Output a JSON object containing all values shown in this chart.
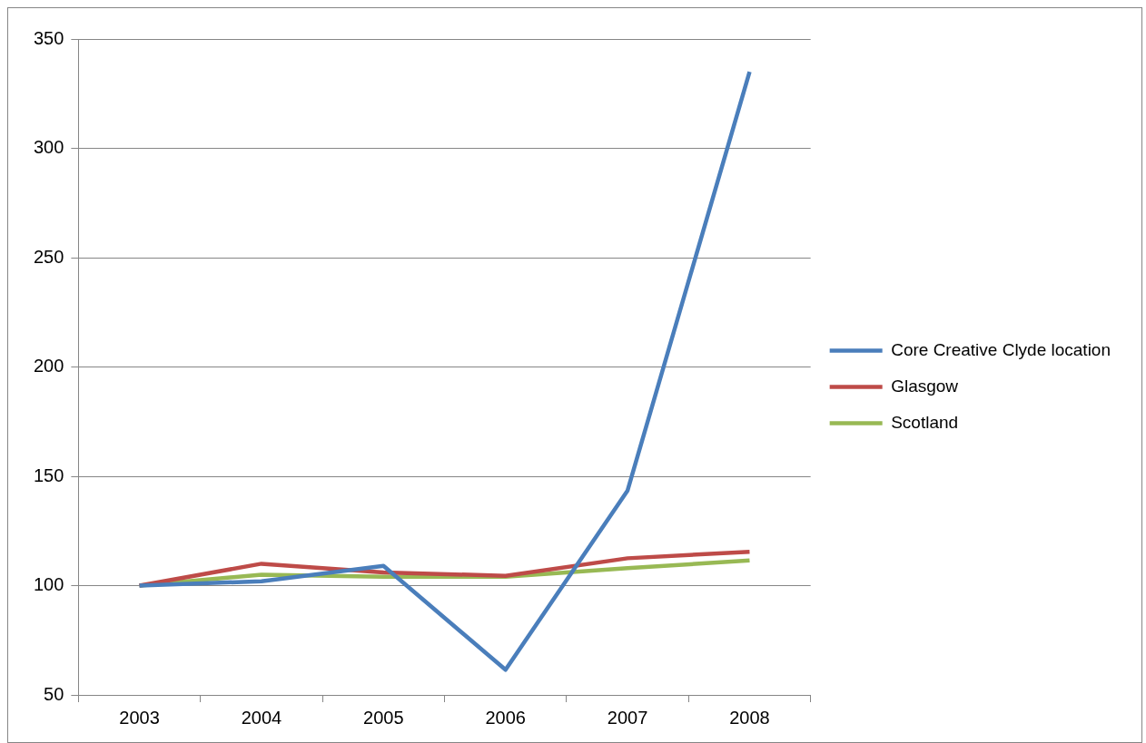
{
  "chart_data": {
    "type": "line",
    "categories": [
      "2003",
      "2004",
      "2005",
      "2006",
      "2007",
      "2008"
    ],
    "series": [
      {
        "name": "Core Creative Clyde location",
        "color": "#4a7ebb",
        "values": [
          100,
          102,
          109,
          61.5,
          143.5,
          335
        ]
      },
      {
        "name": "Glasgow",
        "color": "#be4b48",
        "values": [
          100,
          110,
          106,
          104.5,
          112.5,
          115.5
        ]
      },
      {
        "name": "Scotland",
        "color": "#98b954",
        "values": [
          100,
          105,
          104,
          104,
          108,
          111.5
        ]
      }
    ],
    "ylim": [
      50,
      350
    ],
    "yticks": [
      50,
      100,
      150,
      200,
      250,
      300,
      350
    ],
    "grid": "y",
    "legend": "right",
    "marker": "none",
    "line_style": "solid"
  }
}
